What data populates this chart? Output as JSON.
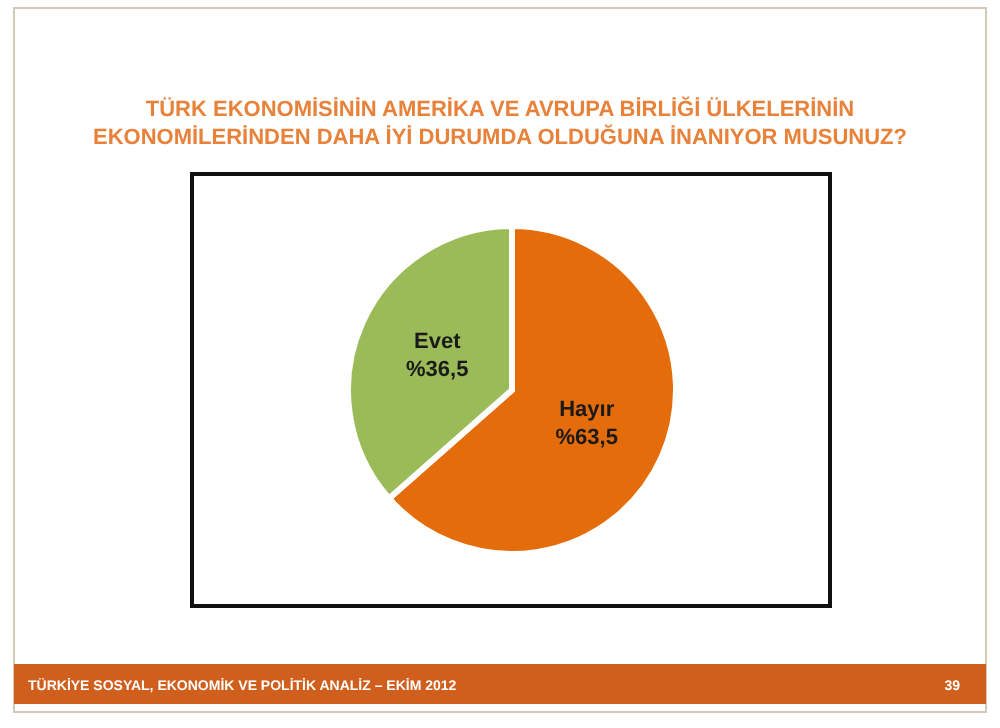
{
  "chart_data": {
    "type": "pie",
    "title": "TÜRK EKONOMİSİNİN AMERİKA VE AVRUPA BİRLİĞİ ÜLKELERİNİN EKONOMİLERİNDEN DAHA İYİ DURUMDA OLDUĞUNA İNANIYOR MUSUNUZ?",
    "categories": [
      "Hayır",
      "Evet"
    ],
    "values": [
      63.5,
      36.5
    ],
    "colors": [
      "#e46c0a",
      "#9bbb59"
    ],
    "value_labels": [
      "%63,5",
      "%36,5"
    ],
    "annotations": [
      "TÜRKİYE SOSYAL, EKONOMİK VE POLİTİK ANALİZ – EKİM 2012",
      "39"
    ]
  }
}
